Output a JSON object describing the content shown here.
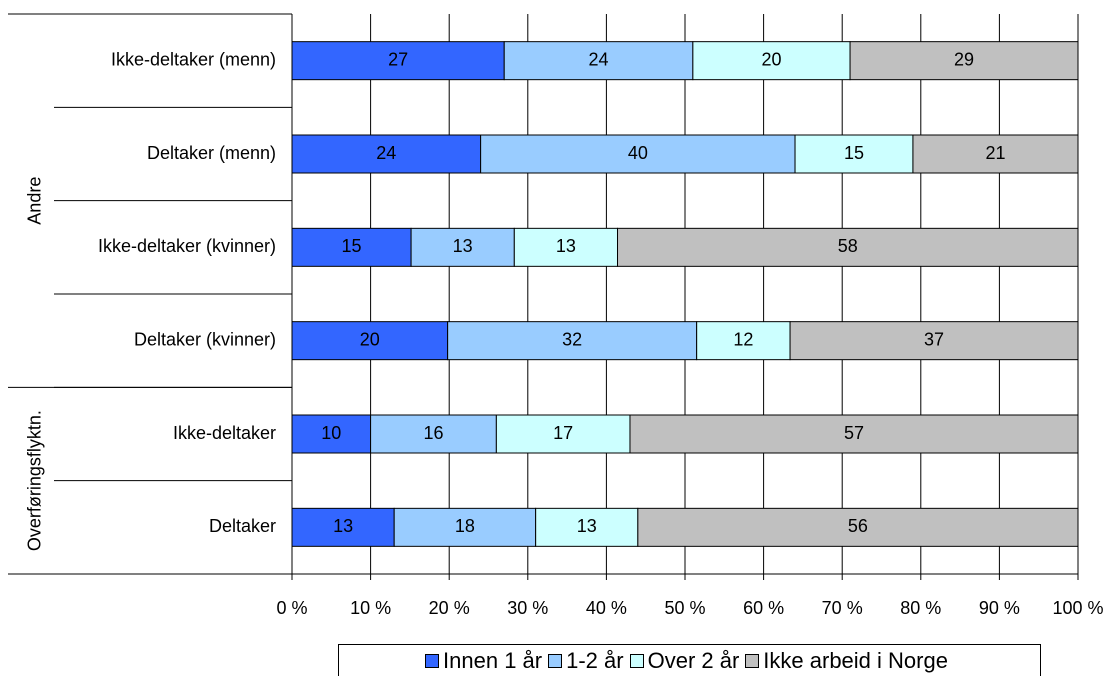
{
  "chart_data": {
    "type": "bar",
    "orientation": "horizontal",
    "stacked": "percent",
    "categories": [
      "Ikke-deltaker (menn)",
      "Deltaker (menn)",
      "Ikke-deltaker (kvinner)",
      "Deltaker (kvinner)",
      "Ikke-deltaker",
      "Deltaker"
    ],
    "groups": [
      {
        "label": "Andre",
        "categories": [
          "Ikke-deltaker (menn)",
          "Deltaker (menn)",
          "Ikke-deltaker (kvinner)",
          "Deltaker (kvinner)"
        ]
      },
      {
        "label": "Overføringsflyktn.",
        "categories": [
          "Ikke-deltaker",
          "Deltaker"
        ]
      }
    ],
    "series": [
      {
        "name": "Innen 1 år",
        "color": "#3366ff",
        "values": [
          27,
          24,
          15,
          20,
          10,
          13
        ]
      },
      {
        "name": "1-2 år",
        "color": "#99ccff",
        "values": [
          24,
          40,
          13,
          32,
          16,
          18
        ]
      },
      {
        "name": "Over 2 år",
        "color": "#ccffff",
        "values": [
          20,
          15,
          13,
          12,
          17,
          13
        ]
      },
      {
        "name": "Ikke arbeid i Norge",
        "color": "#c0c0c0",
        "values": [
          29,
          21,
          58,
          37,
          57,
          56
        ]
      }
    ],
    "x_ticks": [
      "0 %",
      "10 %",
      "20 %",
      "30 %",
      "40 %",
      "50 %",
      "60 %",
      "70 %",
      "80 %",
      "90 %",
      "100 %"
    ],
    "xlim": [
      0,
      100
    ],
    "grid": true,
    "legend_position": "bottom"
  }
}
